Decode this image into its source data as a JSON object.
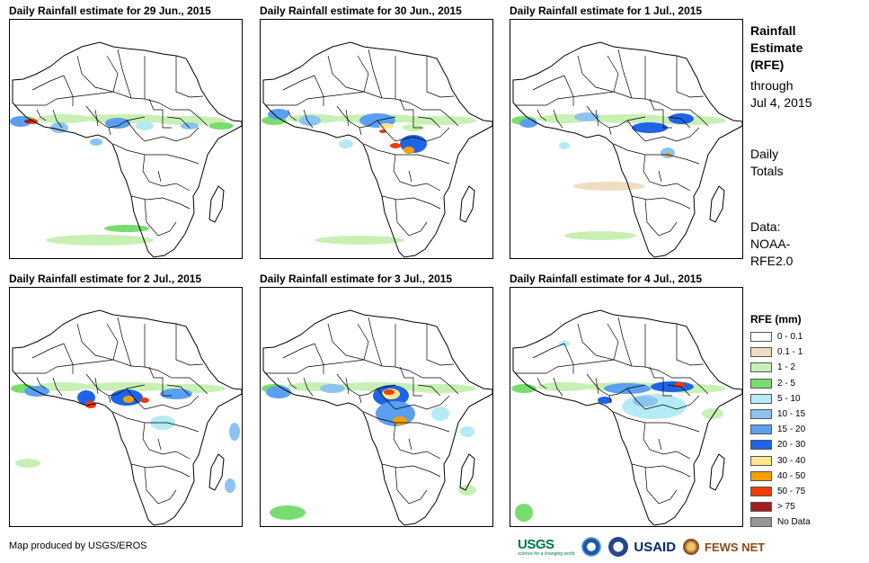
{
  "panels": [
    {
      "title": "Daily Rainfall estimate for 29 Jun., 2015"
    },
    {
      "title": "Daily Rainfall estimate for 30 Jun., 2015"
    },
    {
      "title": "Daily Rainfall estimate for 1 Jul., 2015"
    },
    {
      "title": "Daily Rainfall estimate for 2 Jul., 2015"
    },
    {
      "title": "Daily Rainfall estimate for 3 Jul., 2015"
    },
    {
      "title": "Daily Rainfall estimate for 4 Jul., 2015"
    }
  ],
  "side": {
    "title_line1": "Rainfall",
    "title_line2": "Estimate",
    "title_line3": "(RFE)",
    "through_line1": "through",
    "through_line2": "Jul 4, 2015",
    "totals_line1": "Daily",
    "totals_line2": "Totals",
    "data_line1": "Data:",
    "data_line2": "NOAA-",
    "data_line3": "RFE2.0"
  },
  "legend": {
    "title": "RFE (mm)",
    "items": [
      {
        "label": "0 - 0.1",
        "color": "#ffffff"
      },
      {
        "label": "0.1 - 1",
        "color": "#f0dcc0"
      },
      {
        "label": "1 - 2",
        "color": "#c8f0b4"
      },
      {
        "label": "2 - 5",
        "color": "#78dc6e"
      },
      {
        "label": "5 - 10",
        "color": "#b4ebf5"
      },
      {
        "label": "10 - 15",
        "color": "#8cc3f0"
      },
      {
        "label": "15 - 20",
        "color": "#5a9ff0"
      },
      {
        "label": "20 - 30",
        "color": "#1e64e6"
      },
      {
        "label": "30 - 40",
        "color": "#ffe68c"
      },
      {
        "label": "40 - 50",
        "color": "#f5a000"
      },
      {
        "label": "50 - 75",
        "color": "#f03c00"
      },
      {
        "label": "> 75",
        "color": "#a01e1e"
      },
      {
        "label": "No Data",
        "color": "#969696"
      }
    ]
  },
  "footer": {
    "credit": "Map produced by USGS/EROS",
    "logo_usgs": "USGS",
    "logo_usgs_tagline": "science for a changing world",
    "logo_usaid": "USAID",
    "logo_fews": "FEWS NET"
  }
}
